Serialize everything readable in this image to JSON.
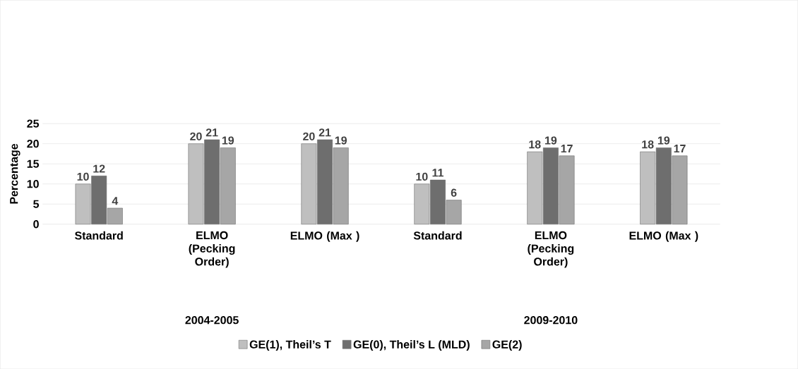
{
  "chart_data": {
    "type": "bar",
    "categories": [
      "Standard",
      "ELMO (Pecking Order)",
      "ELMO (Max )",
      "Standard",
      "ELMO (Pecking Order)",
      "ELMO (Max )"
    ],
    "series": [
      {
        "name": "GE(1), Theil’s T",
        "color": "#bfbfbf",
        "values": [
          10,
          20,
          20,
          10,
          18,
          18
        ]
      },
      {
        "name": "GE(0), Theil’s L (MLD)",
        "color": "#6e6e6e",
        "values": [
          12,
          21,
          21,
          11,
          19,
          19
        ]
      },
      {
        "name": "GE(2)",
        "color": "#a6a6a6",
        "values": [
          4,
          19,
          19,
          6,
          17,
          17
        ]
      }
    ],
    "ylabel": "Percentage",
    "annotations": [
      "2004-2005",
      "2009-2010"
    ],
    "ylim": [
      0,
      25
    ],
    "yticks": [
      0,
      5,
      10,
      15,
      20,
      25
    ],
    "grid": "y",
    "legend": "bottom",
    "data_labels": true
  }
}
